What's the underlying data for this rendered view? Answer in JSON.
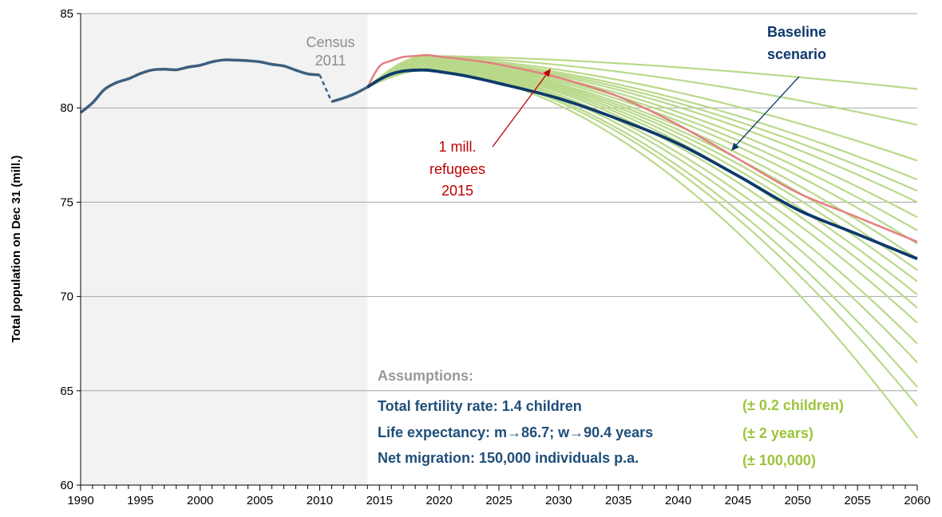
{
  "chart_data": {
    "type": "line",
    "ylabel": "Total population on Dec  31 (mill.)",
    "xlabel": "",
    "xlim": [
      1990,
      2060
    ],
    "ylim": [
      60,
      85
    ],
    "x_ticks": [
      1990,
      1995,
      2000,
      2005,
      2010,
      2015,
      2020,
      2025,
      2030,
      2035,
      2040,
      2045,
      2050,
      2055,
      2060
    ],
    "y_ticks": [
      60,
      65,
      70,
      75,
      80,
      85
    ],
    "grid": "horizontal",
    "shaded_region": [
      1990,
      2014
    ],
    "colors": {
      "historical": "#3e5f7e",
      "baseline": "#0d3a6b",
      "refugees": "#e38080",
      "variants": "#b9d98a",
      "shade": "#f2f2f2",
      "grid": "#a6a6a6",
      "census_label": "#8c8c8c",
      "refugees_label": "#c00000",
      "assumption_title": "#999999",
      "assumption_main": "#1f4e79",
      "assumption_range": "#9cc43a"
    },
    "historical": {
      "x": [
        1990,
        1991,
        1992,
        1993,
        1994,
        1995,
        1996,
        1997,
        1998,
        1999,
        2000,
        2001,
        2002,
        2003,
        2004,
        2005,
        2006,
        2007,
        2008,
        2009,
        2010
      ],
      "y": [
        79.75,
        80.27,
        80.98,
        81.34,
        81.54,
        81.82,
        82.01,
        82.05,
        82.02,
        82.16,
        82.26,
        82.44,
        82.54,
        82.53,
        82.5,
        82.44,
        82.31,
        82.22,
        82.0,
        81.8,
        81.75
      ]
    },
    "census_gap": {
      "x": [
        2010,
        2011
      ],
      "y": [
        81.75,
        80.33
      ]
    },
    "post_census": {
      "x": [
        2011,
        2012,
        2013,
        2014
      ],
      "y": [
        80.33,
        80.52,
        80.77,
        81.1
      ]
    },
    "baseline": {
      "x": [
        2014,
        2015,
        2016,
        2017,
        2018,
        2019,
        2020,
        2022,
        2025,
        2030,
        2035,
        2040,
        2045,
        2050,
        2055,
        2060
      ],
      "y": [
        81.1,
        81.5,
        81.8,
        81.95,
        82.0,
        82.0,
        81.92,
        81.72,
        81.3,
        80.5,
        79.4,
        78.1,
        76.4,
        74.6,
        73.3,
        72.0
      ]
    },
    "refugees": {
      "x": [
        2014,
        2015,
        2016,
        2017,
        2018,
        2019,
        2020,
        2022,
        2025,
        2030,
        2035,
        2040,
        2045,
        2050,
        2055,
        2060
      ],
      "y": [
        81.1,
        82.2,
        82.5,
        82.7,
        82.75,
        82.8,
        82.72,
        82.58,
        82.3,
        81.6,
        80.6,
        79.1,
        77.3,
        75.5,
        74.2,
        72.9
      ]
    },
    "variants_end": [
      81.0,
      79.1,
      77.2,
      76.2,
      75.6,
      75.0,
      74.2,
      73.5,
      72.8,
      72.0,
      71.4,
      70.8,
      70.1,
      69.4,
      68.6,
      67.5,
      66.5,
      65.2,
      64.2,
      62.5
    ],
    "annotations": {
      "census": [
        "Census",
        "2011"
      ],
      "refugees": [
        "1 mill.",
        "refugees",
        "2015"
      ],
      "baseline": [
        "Baseline",
        "scenario"
      ]
    },
    "assumptions": {
      "title": "Assumptions:",
      "rows": [
        {
          "main": "Total fertility rate: 1.4 children",
          "range": "(± 0.2 children)"
        },
        {
          "main": "Life expectancy: m→86.7; w→90.4 years",
          "range": "(± 2 years)"
        },
        {
          "main": "Net migration: 150,000 individuals p.a.",
          "range": "(± 100,000)"
        }
      ]
    }
  }
}
